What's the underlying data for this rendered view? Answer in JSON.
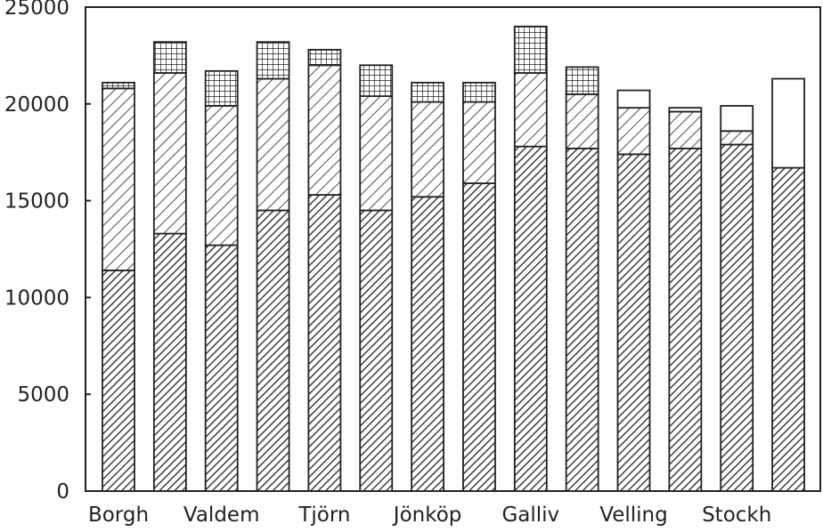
{
  "chart_data": {
    "type": "bar",
    "stacked": true,
    "title": "",
    "xlabel": "",
    "ylabel": "",
    "ylim": [
      0,
      25000
    ],
    "yticks": [
      0,
      5000,
      10000,
      15000,
      20000,
      25000
    ],
    "grid": false,
    "legend": "none",
    "categories": [
      "Borgh",
      "",
      "Valdem",
      "",
      "Tjörn",
      "",
      "Jönköp",
      "",
      "Galliv",
      "",
      "Velling",
      "",
      "Stockh",
      ""
    ],
    "series": [
      {
        "pattern": "dense-hatch",
        "values": [
          11400,
          13300,
          12700,
          14500,
          15300,
          14500,
          15200,
          15900,
          17800,
          17700,
          17400,
          17700,
          17900,
          16700
        ]
      },
      {
        "pattern": "diagonal-hatch",
        "values": [
          9400,
          8300,
          7200,
          6800,
          6700,
          5900,
          4900,
          4200,
          3800,
          2800,
          2400,
          1900,
          700,
          0
        ]
      },
      {
        "pattern": "grid-hatch",
        "values": [
          300,
          1600,
          1800,
          1900,
          800,
          1600,
          1000,
          1000,
          2400,
          1400,
          0,
          0,
          0,
          0
        ]
      },
      {
        "pattern": "empty",
        "values": [
          0,
          0,
          0,
          0,
          0,
          0,
          0,
          0,
          0,
          0,
          900,
          200,
          1300,
          4600
        ]
      }
    ],
    "colors": {
      "ink": "#222222",
      "background": "#ffffff"
    }
  }
}
